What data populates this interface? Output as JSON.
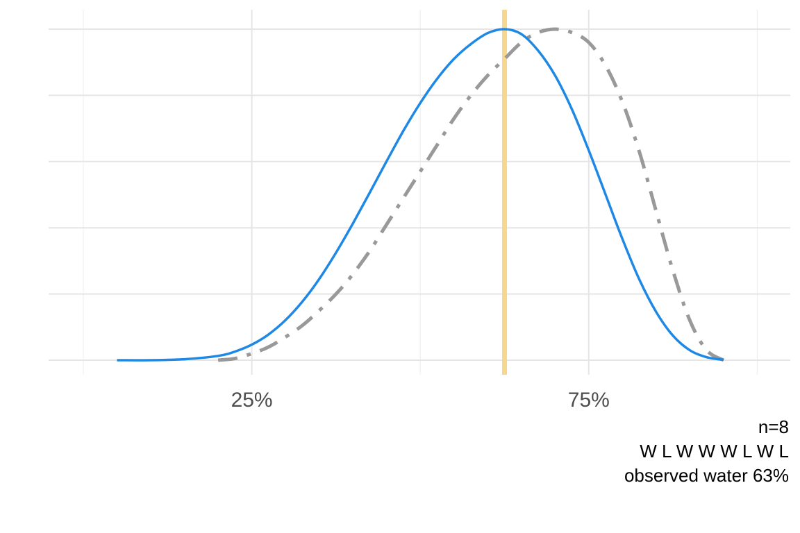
{
  "chart_data": {
    "type": "line",
    "title": "",
    "xlabel": "",
    "ylabel": "",
    "xlim": [
      0.0,
      1.1
    ],
    "ylim": [
      0,
      1.04
    ],
    "x_ticks": [
      0.25,
      0.75
    ],
    "x_tick_labels": [
      "25%",
      "75%"
    ],
    "y_gridlines": [
      0,
      0.2,
      0.4,
      0.6,
      0.8,
      1.0
    ],
    "y_axis_labels_shown": false,
    "grid": true,
    "vline": {
      "x": 0.625,
      "color": "#f5d78e"
    },
    "series": [
      {
        "name": "",
        "style": "solid",
        "color": "#1e88e5",
        "x": [
          0.05,
          0.1,
          0.15,
          0.2,
          0.225,
          0.25,
          0.275,
          0.3,
          0.325,
          0.35,
          0.375,
          0.4,
          0.425,
          0.45,
          0.475,
          0.5,
          0.525,
          0.55,
          0.575,
          0.6,
          0.625,
          0.65,
          0.675,
          0.7,
          0.725,
          0.75,
          0.775,
          0.8,
          0.825,
          0.85,
          0.875,
          0.9,
          0.925,
          0.95
        ],
        "y": [
          0.0,
          0.0,
          0.003,
          0.013,
          0.026,
          0.047,
          0.078,
          0.121,
          0.177,
          0.245,
          0.325,
          0.413,
          0.506,
          0.601,
          0.693,
          0.777,
          0.85,
          0.91,
          0.955,
          0.988,
          1.0,
          0.985,
          0.935,
          0.86,
          0.758,
          0.634,
          0.5,
          0.366,
          0.244,
          0.146,
          0.074,
          0.03,
          0.009,
          0.001
        ]
      },
      {
        "name": "",
        "style": "dash-dot",
        "color": "#999999",
        "x": [
          0.2,
          0.225,
          0.25,
          0.275,
          0.3,
          0.325,
          0.35,
          0.375,
          0.4,
          0.425,
          0.45,
          0.475,
          0.5,
          0.525,
          0.55,
          0.575,
          0.6,
          0.625,
          0.65,
          0.675,
          0.7,
          0.725,
          0.75,
          0.775,
          0.8,
          0.825,
          0.85,
          0.875,
          0.9,
          0.925,
          0.95
        ],
        "y": [
          0.0,
          0.005,
          0.02,
          0.04,
          0.07,
          0.105,
          0.15,
          0.2,
          0.26,
          0.33,
          0.41,
          0.49,
          0.57,
          0.65,
          0.73,
          0.8,
          0.86,
          0.91,
          0.96,
          0.99,
          1.0,
          0.99,
          0.96,
          0.89,
          0.78,
          0.63,
          0.45,
          0.27,
          0.12,
          0.03,
          0.0
        ]
      }
    ]
  },
  "caption": {
    "line1": "n=8",
    "line2": "W L W W W L W L",
    "line3": "observed water 63%"
  }
}
